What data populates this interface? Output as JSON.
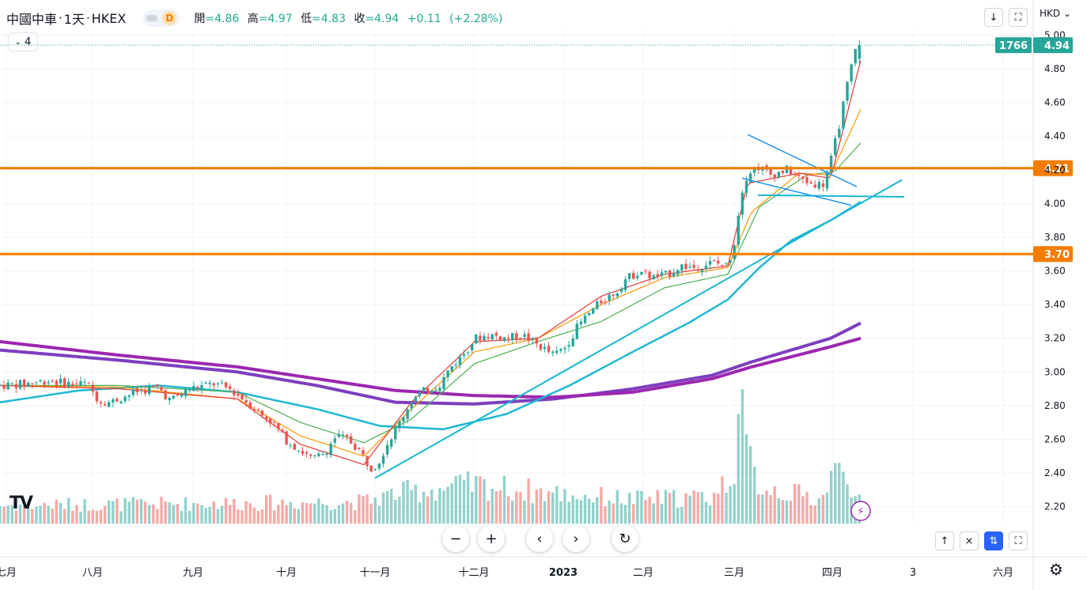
{
  "header": {
    "symbol_title": "中國中車",
    "interval": "1天",
    "exchange": "HKEX",
    "dot": "·",
    "badge": "D",
    "open_label": "開",
    "open": "=4.86",
    "high_label": "高",
    "high": "=4.97",
    "low_label": "低",
    "low": "=4.83",
    "close_label": "收",
    "close": "=4.94",
    "change": "+0.11",
    "change_pct": "(+2.28%)",
    "indicator_count": "4"
  },
  "currency": "HKD",
  "price_labels": {
    "volume_tag": "1766",
    "last_price": "4.94",
    "level_upper": "4.21",
    "level_lower": "3.70"
  },
  "colors": {
    "up": "#26a69a",
    "down": "#ef5350",
    "horizontal_level": "#f57c00",
    "trend": "#19b7d0",
    "ma_purple_1": "#7e3fbf",
    "ma_purple_2": "#9c27b0",
    "ma_red": "#e53935",
    "ma_orange": "#ff9800",
    "ma_green": "#4caf50",
    "ma_cyan": "#1fb8d4"
  },
  "bottom_controls": {
    "zoom_out": "−",
    "zoom_in": "+",
    "scroll_left": "‹",
    "scroll_right": "›",
    "reset": "↻"
  },
  "bottom_right": {
    "up": "↑",
    "close": "×",
    "auto": "⇅",
    "fullscreen": "⛶"
  },
  "logo": "TV",
  "chart_data": {
    "type": "candlestick",
    "y_axis": {
      "min": 2.1,
      "max": 5.03,
      "ticks": [
        "5.00",
        "4.80",
        "4.60",
        "4.40",
        "4.20",
        "4.00",
        "3.80",
        "3.60",
        "3.40",
        "3.20",
        "3.00",
        "2.80",
        "2.60",
        "2.40",
        "2.20"
      ]
    },
    "x_axis": {
      "labels": [
        "七月",
        "八月",
        "九月",
        "十月",
        "十一月",
        "十二月",
        "2023",
        "二月",
        "三月",
        "四月",
        "3",
        "六月"
      ]
    },
    "horizontal_levels": [
      4.21,
      3.7
    ],
    "last": {
      "open": 4.86,
      "high": 4.97,
      "low": 4.83,
      "close": 4.94,
      "change": 0.11,
      "change_pct": 2.28
    },
    "price_path": [
      [
        0,
        2.92
      ],
      [
        30,
        2.93
      ],
      [
        60,
        2.95
      ],
      [
        90,
        2.93
      ],
      [
        110,
        2.93
      ],
      [
        125,
        2.83
      ],
      [
        140,
        2.82
      ],
      [
        170,
        2.88
      ],
      [
        200,
        2.91
      ],
      [
        215,
        2.83
      ],
      [
        240,
        2.9
      ],
      [
        270,
        2.93
      ],
      [
        290,
        2.9
      ],
      [
        310,
        2.83
      ],
      [
        330,
        2.75
      ],
      [
        345,
        2.7
      ],
      [
        360,
        2.6
      ],
      [
        375,
        2.55
      ],
      [
        395,
        2.48
      ],
      [
        410,
        2.52
      ],
      [
        425,
        2.62
      ],
      [
        440,
        2.6
      ],
      [
        455,
        2.53
      ],
      [
        468,
        2.43
      ],
      [
        478,
        2.46
      ],
      [
        490,
        2.58
      ],
      [
        505,
        2.7
      ],
      [
        520,
        2.83
      ],
      [
        540,
        2.9
      ],
      [
        555,
        2.92
      ],
      [
        570,
        3.03
      ],
      [
        585,
        3.1
      ],
      [
        600,
        3.2
      ],
      [
        620,
        3.22
      ],
      [
        640,
        3.2
      ],
      [
        660,
        3.22
      ],
      [
        680,
        3.16
      ],
      [
        700,
        3.1
      ],
      [
        715,
        3.15
      ],
      [
        730,
        3.27
      ],
      [
        745,
        3.35
      ],
      [
        760,
        3.42
      ],
      [
        780,
        3.48
      ],
      [
        790,
        3.55
      ],
      [
        810,
        3.6
      ],
      [
        825,
        3.56
      ],
      [
        845,
        3.58
      ],
      [
        860,
        3.63
      ],
      [
        880,
        3.62
      ],
      [
        900,
        3.65
      ],
      [
        920,
        3.63
      ],
      [
        930,
        3.8
      ],
      [
        936,
        4.05
      ],
      [
        945,
        4.18
      ],
      [
        958,
        4.22
      ],
      [
        975,
        4.17
      ],
      [
        995,
        4.2
      ],
      [
        1010,
        4.15
      ],
      [
        1025,
        4.12
      ],
      [
        1040,
        4.11
      ],
      [
        1050,
        4.25
      ],
      [
        1060,
        4.45
      ],
      [
        1070,
        4.68
      ],
      [
        1080,
        4.9
      ],
      [
        1088,
        4.94
      ]
    ],
    "volume_profile": [
      [
        0,
        0.15
      ],
      [
        460,
        0.18
      ],
      [
        500,
        0.25
      ],
      [
        540,
        0.28
      ],
      [
        600,
        0.32
      ],
      [
        700,
        0.25
      ],
      [
        800,
        0.2
      ],
      [
        900,
        0.22
      ],
      [
        925,
        0.4
      ],
      [
        930,
        0.6
      ],
      [
        935,
        1.0
      ],
      [
        945,
        0.55
      ],
      [
        960,
        0.32
      ],
      [
        1000,
        0.25
      ],
      [
        1040,
        0.2
      ],
      [
        1050,
        0.45
      ],
      [
        1075,
        0.35
      ],
      [
        1088,
        0.3
      ]
    ],
    "moving_averages": [
      {
        "name": "",
        "color": "#7e3fbf",
        "points": [
          [
            0,
            3.13
          ],
          [
            150,
            3.07
          ],
          [
            300,
            3.0
          ],
          [
            400,
            2.92
          ],
          [
            500,
            2.82
          ],
          [
            600,
            2.81
          ],
          [
            700,
            2.84
          ],
          [
            800,
            2.9
          ],
          [
            900,
            2.98
          ],
          [
            950,
            3.06
          ],
          [
            1000,
            3.13
          ],
          [
            1050,
            3.2
          ],
          [
            1088,
            3.29
          ]
        ]
      },
      {
        "name": "",
        "color": "#9c27b0",
        "points": [
          [
            0,
            3.18
          ],
          [
            150,
            3.1
          ],
          [
            300,
            3.03
          ],
          [
            400,
            2.96
          ],
          [
            500,
            2.89
          ],
          [
            600,
            2.86
          ],
          [
            700,
            2.85
          ],
          [
            800,
            2.88
          ],
          [
            900,
            2.96
          ],
          [
            950,
            3.03
          ],
          [
            1000,
            3.09
          ],
          [
            1050,
            3.15
          ],
          [
            1088,
            3.2
          ]
        ]
      },
      {
        "name": "",
        "color": "#1fb8d4",
        "points": [
          [
            0,
            2.82
          ],
          [
            100,
            2.89
          ],
          [
            200,
            2.92
          ],
          [
            300,
            2.88
          ],
          [
            400,
            2.78
          ],
          [
            480,
            2.68
          ],
          [
            560,
            2.66
          ],
          [
            640,
            2.75
          ],
          [
            720,
            2.92
          ],
          [
            800,
            3.12
          ],
          [
            870,
            3.29
          ],
          [
            920,
            3.43
          ],
          [
            960,
            3.62
          ],
          [
            1000,
            3.78
          ],
          [
            1050,
            3.9
          ],
          [
            1088,
            4.01
          ]
        ]
      },
      {
        "name": "",
        "color": "#4caf50",
        "points": [
          [
            0,
            2.92
          ],
          [
            150,
            2.92
          ],
          [
            300,
            2.88
          ],
          [
            380,
            2.7
          ],
          [
            460,
            2.58
          ],
          [
            520,
            2.72
          ],
          [
            600,
            3.05
          ],
          [
            680,
            3.18
          ],
          [
            760,
            3.3
          ],
          [
            840,
            3.5
          ],
          [
            920,
            3.58
          ],
          [
            960,
            3.98
          ],
          [
            1020,
            4.17
          ],
          [
            1055,
            4.19
          ],
          [
            1088,
            4.36
          ]
        ]
      },
      {
        "name": "",
        "color": "#ff9800",
        "points": [
          [
            0,
            2.92
          ],
          [
            150,
            2.91
          ],
          [
            300,
            2.84
          ],
          [
            380,
            2.62
          ],
          [
            460,
            2.5
          ],
          [
            520,
            2.78
          ],
          [
            600,
            3.12
          ],
          [
            680,
            3.2
          ],
          [
            760,
            3.4
          ],
          [
            840,
            3.56
          ],
          [
            920,
            3.62
          ],
          [
            950,
            3.95
          ],
          [
            1010,
            4.18
          ],
          [
            1050,
            4.17
          ],
          [
            1088,
            4.56
          ]
        ]
      },
      {
        "name": "",
        "color": "#e53935",
        "points": [
          [
            0,
            2.92
          ],
          [
            150,
            2.9
          ],
          [
            300,
            2.84
          ],
          [
            380,
            2.57
          ],
          [
            460,
            2.45
          ],
          [
            520,
            2.82
          ],
          [
            600,
            3.18
          ],
          [
            680,
            3.2
          ],
          [
            760,
            3.45
          ],
          [
            840,
            3.58
          ],
          [
            920,
            3.63
          ],
          [
            945,
            4.12
          ],
          [
            1010,
            4.18
          ],
          [
            1050,
            4.15
          ],
          [
            1088,
            4.85
          ]
        ]
      }
    ],
    "trendlines": [
      {
        "color": "#19b7d0",
        "from": [
          474,
          2.37
        ],
        "to": [
          1140,
          4.14
        ]
      },
      {
        "color": "#19b7d0",
        "from": [
          958,
          4.05
        ],
        "to": [
          1143,
          4.04
        ]
      },
      {
        "color": "#2196f3",
        "from": [
          945,
          4.41
        ],
        "to": [
          1083,
          4.1
        ]
      },
      {
        "color": "#2196f3",
        "from": [
          938,
          4.15
        ],
        "to": [
          1076,
          3.99
        ]
      }
    ]
  }
}
